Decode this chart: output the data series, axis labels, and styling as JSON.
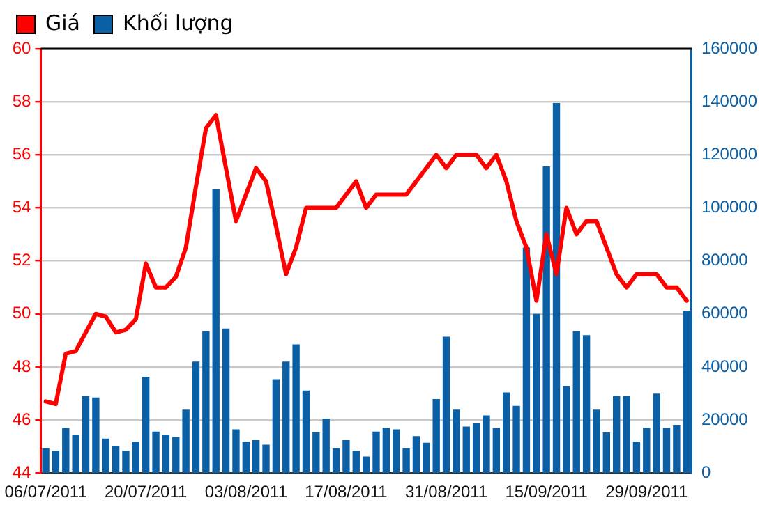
{
  "chart_data": {
    "type": "bar",
    "categories": [
      "06/07/2011",
      null,
      null,
      null,
      null,
      null,
      null,
      null,
      null,
      null,
      "20/07/2011",
      null,
      null,
      null,
      null,
      null,
      null,
      null,
      null,
      null,
      "03/08/2011",
      null,
      null,
      null,
      null,
      null,
      null,
      null,
      null,
      null,
      "17/08/2011",
      null,
      null,
      null,
      null,
      null,
      null,
      null,
      null,
      null,
      "31/08/2011",
      null,
      null,
      null,
      null,
      null,
      null,
      null,
      null,
      null,
      "15/09/2011",
      null,
      null,
      null,
      null,
      null,
      null,
      null,
      null,
      null,
      "29/09/2011",
      null,
      null,
      null,
      null
    ],
    "series": [
      {
        "name": "Giá",
        "type": "line",
        "axis": "y",
        "color": "#ff0000",
        "values": [
          46.7,
          46.6,
          48.5,
          48.6,
          49.3,
          50.0,
          49.9,
          49.3,
          49.4,
          49.8,
          51.9,
          51.0,
          51.0,
          51.4,
          52.5,
          54.8,
          57.0,
          57.5,
          55.5,
          53.5,
          54.5,
          55.5,
          55.0,
          53.3,
          51.5,
          52.5,
          54.0,
          54.0,
          54.0,
          54.0,
          54.5,
          55.0,
          54.0,
          54.5,
          54.5,
          54.5,
          54.5,
          55.0,
          55.5,
          56.0,
          55.5,
          56.0,
          56.0,
          56.0,
          55.5,
          56.0,
          55.0,
          53.5,
          52.5,
          50.5,
          53.0,
          51.5,
          54.0,
          53.0,
          53.5,
          53.5,
          52.5,
          51.5,
          51.0,
          51.5,
          51.5,
          51.5,
          51.0,
          51.0,
          50.5
        ]
      },
      {
        "name": "Khối lượng",
        "axis": "y2",
        "color": "#0a5fa5",
        "values": [
          9300,
          8400,
          17000,
          14400,
          29000,
          28500,
          13000,
          10200,
          8400,
          11900,
          36300,
          15600,
          14400,
          13600,
          23900,
          42000,
          53500,
          107000,
          54500,
          16500,
          11900,
          12400,
          10700,
          35400,
          42000,
          48500,
          31100,
          15300,
          20500,
          9300,
          12400,
          8400,
          6200,
          15600,
          17000,
          16500,
          9300,
          13900,
          11400,
          27900,
          51400,
          23900,
          17500,
          18700,
          21700,
          17000,
          30400,
          25300,
          85000,
          60000,
          115600,
          139500,
          32900,
          53500,
          52000,
          23900,
          15300,
          29000,
          29000,
          11900,
          17000,
          29900,
          17000,
          18200,
          61200
        ]
      }
    ],
    "ylim": [
      44,
      60
    ],
    "yticks": [
      44,
      46,
      48,
      50,
      52,
      54,
      56,
      58,
      60
    ],
    "y2lim": [
      0,
      160000
    ],
    "y2ticks": [
      0,
      20000,
      40000,
      60000,
      80000,
      100000,
      120000,
      140000,
      160000
    ],
    "grid": "y",
    "legend": "top left",
    "marker": "none",
    "line_style": "solid"
  }
}
